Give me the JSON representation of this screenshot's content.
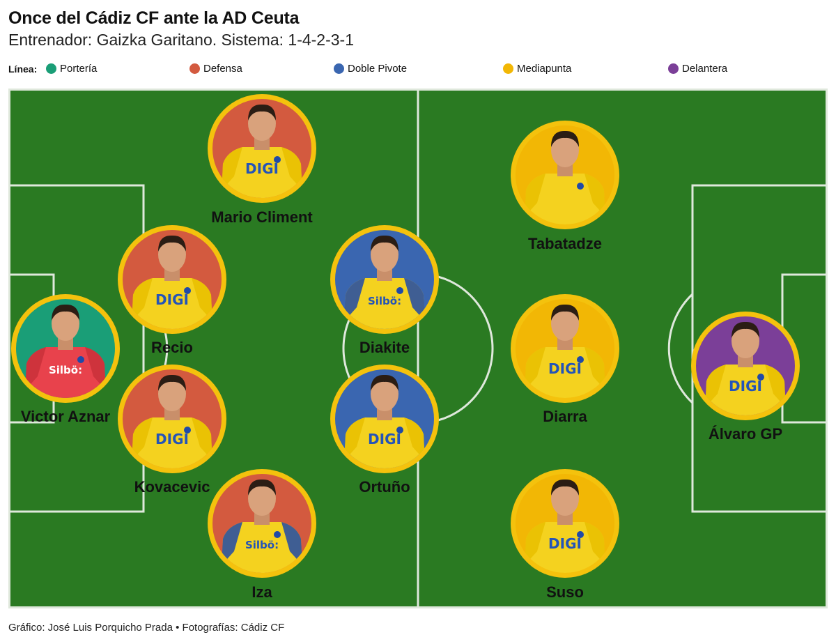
{
  "title": "Once del Cádiz CF ante la AD Ceuta",
  "subtitle": "Entrenador: Gaizka Garitano. Sistema: 1-4-2-3-1",
  "legend": {
    "title": "Línea:",
    "items": [
      {
        "label": "Portería",
        "color": "#1a9e77"
      },
      {
        "label": "Defensa",
        "color": "#d35a3f"
      },
      {
        "label": "Doble Pivote",
        "color": "#3a66b0"
      },
      {
        "label": "Mediapunta",
        "color": "#f2b705"
      },
      {
        "label": "Delantera",
        "color": "#7b3f98"
      }
    ]
  },
  "pitch": {
    "grass_color": "#2a7a22",
    "line_color": "#dfe8dc",
    "ring_color": "#f4c20d"
  },
  "players": [
    {
      "name": "Victor Aznar",
      "line": "Portería",
      "kit": "red",
      "sponsor": "Silbö:"
    },
    {
      "name": "Mario Climent",
      "line": "Defensa",
      "kit": "yellow",
      "sponsor": "DIGI"
    },
    {
      "name": "Recio",
      "line": "Defensa",
      "kit": "yellow",
      "sponsor": "DIGI"
    },
    {
      "name": "Kovacevic",
      "line": "Defensa",
      "kit": "yellow",
      "sponsor": "DIGI"
    },
    {
      "name": "Iza",
      "line": "Defensa",
      "kit": "yellow-blue",
      "sponsor": "Silbö:"
    },
    {
      "name": "Diakite",
      "line": "Doble Pivote",
      "kit": "yellow-blue",
      "sponsor": "Silbö:"
    },
    {
      "name": "Ortuño",
      "line": "Doble Pivote",
      "kit": "yellow",
      "sponsor": "DIGI"
    },
    {
      "name": "Tabatadze",
      "line": "Mediapunta",
      "kit": "yellow",
      "sponsor": ""
    },
    {
      "name": "Diarra",
      "line": "Mediapunta",
      "kit": "yellow",
      "sponsor": "DIGI"
    },
    {
      "name": "Suso",
      "line": "Mediapunta",
      "kit": "yellow",
      "sponsor": "DIGI"
    },
    {
      "name": "Álvaro GP",
      "line": "Delantera",
      "kit": "yellow",
      "sponsor": "DIGI"
    }
  ],
  "source": "Gráfico: José Luis Porquicho Prada • Fotografías: Cádiz CF"
}
